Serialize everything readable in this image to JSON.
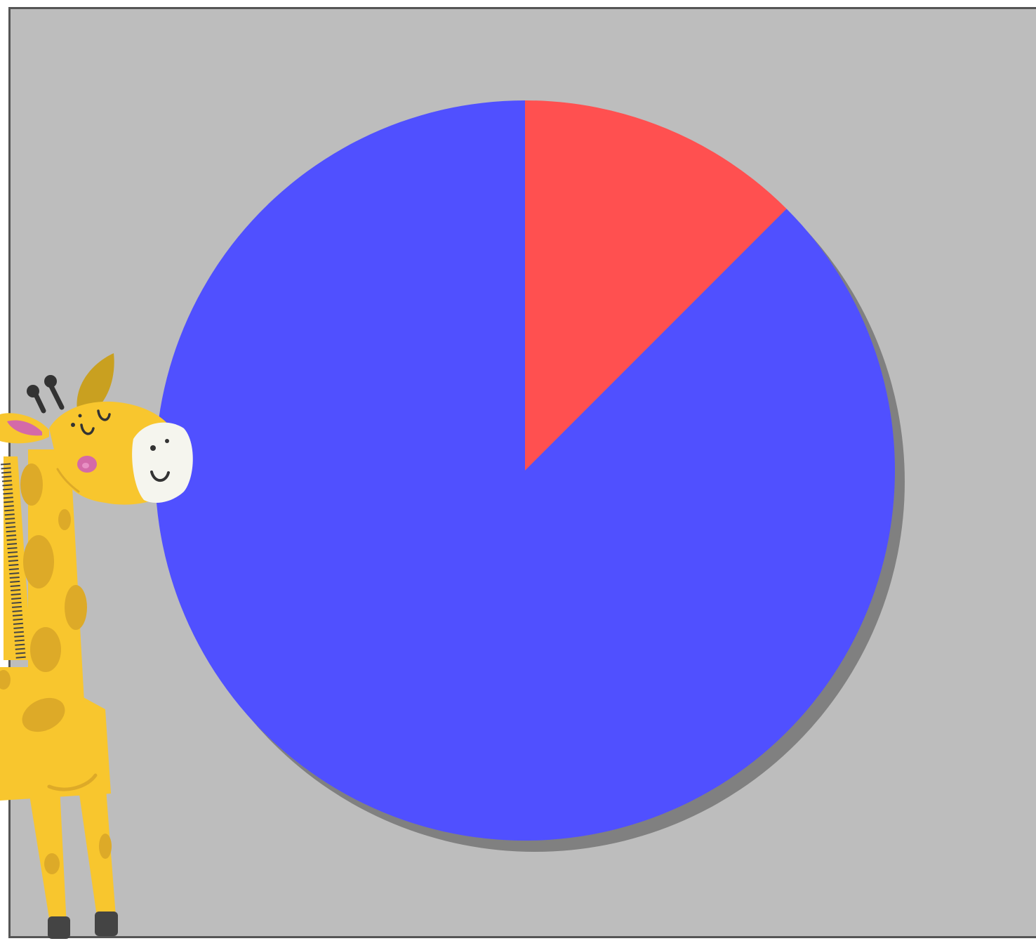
{
  "chart_data": {
    "type": "pie",
    "title": "",
    "start_angle_deg": 0,
    "direction": "clockwise",
    "shadow": true,
    "legend": "none",
    "slices": [
      {
        "label": "",
        "value": 12.5,
        "color": "#ff5050"
      },
      {
        "label": "",
        "value": 87.5,
        "color": "#5050ff"
      }
    ]
  },
  "background_color": "#bdbdbd",
  "frame_color": "#555555",
  "shadow_color": "#808080",
  "decoration": {
    "icon": "giraffe-icon"
  }
}
